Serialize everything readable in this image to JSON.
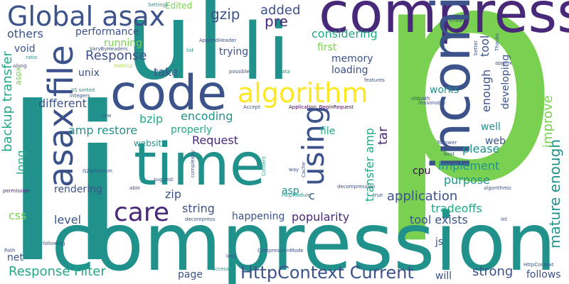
{
  "palette": {
    "background": "#ffffff",
    "green": "#7ad151",
    "teal": "#21918c",
    "navy": "#3b528b",
    "purple": "#482878",
    "yellow": "#fde725",
    "light_green": "#addc30",
    "sea_green": "#22a884",
    "dark_purple": "#440154"
  },
  "words": [
    {
      "text": "p",
      "color": "#7ad151"
    },
    {
      "text": "li",
      "color": "#21918c"
    },
    {
      "text": "compression",
      "color": "#21918c"
    },
    {
      "text": "ul",
      "color": "#21918c"
    },
    {
      "text": "li",
      "color": "#21918c"
    },
    {
      "text": "compress",
      "color": "#482878"
    },
    {
      "text": "incoming",
      "color": "#3b528b"
    },
    {
      "text": "time",
      "color": "#21918c"
    },
    {
      "text": "code",
      "color": "#3b528b"
    },
    {
      "text": "Global asax",
      "color": "#3b528b"
    },
    {
      "text": "asax file",
      "color": "#3b528b"
    },
    {
      "text": "algorithm",
      "color": "#fde725"
    },
    {
      "text": "using",
      "color": "#3b528b"
    },
    {
      "text": "care",
      "color": "#482878"
    },
    {
      "text": "HttpContext Current",
      "color": "#3b528b"
    },
    {
      "text": "mature enough",
      "color": "#21918c"
    },
    {
      "text": "backup transfer",
      "color": "#22a884"
    },
    {
      "text": "transfer amp",
      "color": "#22a884"
    },
    {
      "text": "improve",
      "color": "#7ad151"
    },
    {
      "text": "gzip",
      "color": "#3b528b"
    },
    {
      "text": "added",
      "color": "#3b528b"
    },
    {
      "text": "pre",
      "color": "#482878"
    },
    {
      "text": "Edited",
      "color": "#7ad151"
    },
    {
      "text": "considering",
      "color": "#22a884"
    },
    {
      "text": "others",
      "color": "#3b528b"
    },
    {
      "text": "void",
      "color": "#3b528b"
    },
    {
      "text": "performance",
      "color": "#3b528b"
    },
    {
      "text": "Response",
      "color": "#3b528b"
    },
    {
      "text": "running",
      "color": "#7ad151"
    },
    {
      "text": "trying",
      "color": "#3b528b"
    },
    {
      "text": "first",
      "color": "#7ad151"
    },
    {
      "text": "memory",
      "color": "#3b528b"
    },
    {
      "text": "loading",
      "color": "#3b528b"
    },
    {
      "text": "unix",
      "color": "#3b528b"
    },
    {
      "text": "take",
      "color": "#3b528b"
    },
    {
      "text": "different",
      "color": "#3b528b"
    },
    {
      "text": "tool",
      "color": "#3b528b"
    },
    {
      "text": "enough",
      "color": "#3b528b"
    },
    {
      "text": "developing",
      "color": "#3b528b"
    },
    {
      "text": "works",
      "color": "#21918c"
    },
    {
      "text": "bzip",
      "color": "#22a884"
    },
    {
      "text": "encoding",
      "color": "#21918c"
    },
    {
      "text": "amp restore",
      "color": "#21918c"
    },
    {
      "text": "properly",
      "color": "#22a884"
    },
    {
      "text": "website",
      "color": "#21918c"
    },
    {
      "text": "file",
      "color": "#22a884"
    },
    {
      "text": "tar",
      "color": "#482878"
    },
    {
      "text": "well",
      "color": "#21918c"
    },
    {
      "text": "web",
      "color": "#3b528b"
    },
    {
      "text": "please",
      "color": "#21918c"
    },
    {
      "text": "Request",
      "color": "#482878"
    },
    {
      "text": "long",
      "color": "#22a884"
    },
    {
      "text": "implement",
      "color": "#21918c"
    },
    {
      "text": "purpose",
      "color": "#21918c"
    },
    {
      "text": "cpu",
      "color": "#440154"
    },
    {
      "text": "application",
      "color": "#3b528b"
    },
    {
      "text": "rendering",
      "color": "#3b528b"
    },
    {
      "text": "zip",
      "color": "#3b528b"
    },
    {
      "text": "asp",
      "color": "#21918c"
    },
    {
      "text": "c",
      "color": "#3b528b"
    },
    {
      "text": "string",
      "color": "#3b528b"
    },
    {
      "text": "tradeoffs",
      "color": "#22a884"
    },
    {
      "text": "tool exists",
      "color": "#3b528b"
    },
    {
      "text": "css",
      "color": "#7ad151"
    },
    {
      "text": "level",
      "color": "#3b528b"
    },
    {
      "text": "happening",
      "color": "#3b528b"
    },
    {
      "text": "popularity",
      "color": "#482878"
    },
    {
      "text": "js",
      "color": "#3b528b"
    },
    {
      "text": "net",
      "color": "#3b528b"
    },
    {
      "text": "Response Filter",
      "color": "#22a884"
    },
    {
      "text": "page",
      "color": "#3b528b"
    },
    {
      "text": "strong",
      "color": "#3b528b"
    },
    {
      "text": "follows",
      "color": "#3b528b"
    },
    {
      "text": "will",
      "color": "#3b528b"
    },
    {
      "text": "aspx",
      "color": "#7ad151"
    },
    {
      "text": "Settings",
      "color": "#21918c"
    },
    {
      "text": "AppendHeader",
      "color": "#3b528b"
    },
    {
      "text": "VaryByHeaders",
      "color": "#3b528b"
    },
    {
      "text": "metrics",
      "color": "#addc30"
    },
    {
      "text": "ratio",
      "color": "#21918c"
    },
    {
      "text": "along",
      "color": "#3b528b"
    },
    {
      "text": "list",
      "color": "#21918c"
    },
    {
      "text": "possible",
      "color": "#3b528b"
    },
    {
      "text": "data",
      "color": "#21918c"
    },
    {
      "text": "features",
      "color": "#3b528b"
    },
    {
      "text": "IIS sorted",
      "color": "#21918c"
    },
    {
      "text": "integers",
      "color": "#3b528b"
    },
    {
      "text": "oldpath",
      "color": "#3b528b"
    },
    {
      "text": "reasonably",
      "color": "#3b528b"
    },
    {
      "text": "Accept",
      "color": "#3b528b"
    },
    {
      "text": "Application_BeginRequest",
      "color": "#440154"
    },
    {
      "text": "new",
      "color": "#3b528b"
    },
    {
      "text": "complexity",
      "color": "#3b528b"
    },
    {
      "text": "Content",
      "color": "#22a884"
    },
    {
      "text": "Cache",
      "color": "#3b528b"
    },
    {
      "text": "way",
      "color": "#3b528b"
    },
    {
      "text": "GZipStream",
      "color": "#3b528b"
    },
    {
      "text": "suggest",
      "color": "#3b528b"
    },
    {
      "text": "able",
      "color": "#3b528b"
    },
    {
      "text": "HttpModule",
      "color": "#21918c"
    },
    {
      "text": "decompression",
      "color": "#3b528b"
    },
    {
      "text": "true",
      "color": "#3b528b"
    },
    {
      "text": "permission",
      "color": "#482878"
    },
    {
      "text": "decompress",
      "color": "#3b528b"
    },
    {
      "text": "following",
      "color": "#3b528b"
    },
    {
      "text": "CompressionMode",
      "color": "#3b528b"
    },
    {
      "text": "less",
      "color": "#3b528b"
    },
    {
      "text": "Path",
      "color": "#3b528b"
    },
    {
      "text": "access",
      "color": "#21918c"
    },
    {
      "text": "HttpContext",
      "color": "#3b528b"
    },
    {
      "text": "let",
      "color": "#3b528b"
    },
    {
      "text": "know",
      "color": "#3b528b"
    },
    {
      "text": "better",
      "color": "#3b528b"
    },
    {
      "text": "Thanks",
      "color": "#3b528b"
    },
    {
      "text": "approx",
      "color": "#3b528b"
    },
    {
      "text": "ToLower",
      "color": "#3b528b"
    },
    {
      "text": "best",
      "color": "#3b528b"
    },
    {
      "text": "algorithmic",
      "color": "#3b528b"
    }
  ]
}
